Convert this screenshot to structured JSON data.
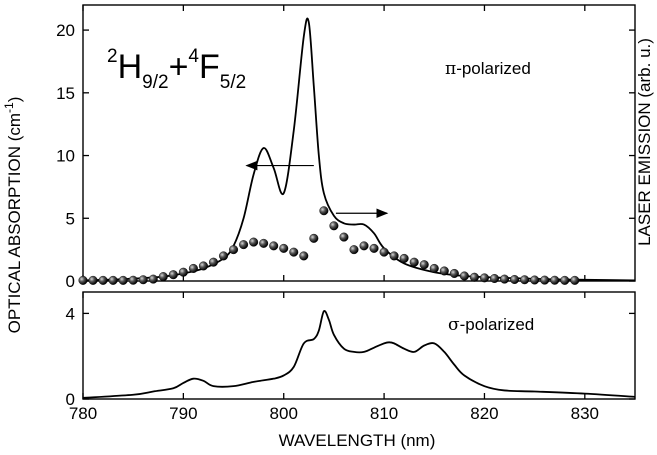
{
  "chart_data": [
    {
      "type": "line",
      "panel": "top",
      "title": "",
      "annotation_term": {
        "l1": "2",
        "t1": "H",
        "s1": "9/2",
        "plus": "+",
        "l2": "4",
        "t2": "F",
        "s2": "5/2"
      },
      "annotation": {
        "pi": "π",
        "text": "-polarized"
      },
      "xlim": [
        780,
        835
      ],
      "ylim": [
        0,
        22
      ],
      "yticks": [
        0,
        5,
        10,
        15,
        20
      ],
      "ytick_labels": [
        "0",
        "5",
        "10",
        "15",
        "20"
      ],
      "ylabel": {
        "main": "OPTICAL ABSORPTION  (cm",
        "sup": "-1",
        "end": ")"
      },
      "y2label": "LASER EMISSION (arb. u.)",
      "series": [
        {
          "kind": "absorption",
          "x": [
            780,
            784,
            788,
            790,
            792,
            794,
            795,
            796,
            797,
            798,
            799,
            800,
            801,
            802,
            802.5,
            803,
            803.5,
            804,
            805,
            806,
            807,
            808,
            809,
            810,
            812,
            815,
            818,
            822,
            826,
            830,
            835
          ],
          "y": [
            0.05,
            0.15,
            0.35,
            0.6,
            1.0,
            1.8,
            2.8,
            5.0,
            8.5,
            10.6,
            9.0,
            7.0,
            12.0,
            19.5,
            20.6,
            15.5,
            10.0,
            7.0,
            5.2,
            4.6,
            4.5,
            4.5,
            3.8,
            2.6,
            1.4,
            0.7,
            0.4,
            0.25,
            0.15,
            0.1,
            0.05
          ]
        },
        {
          "kind": "laser-emission-points",
          "x": [
            780,
            781,
            782,
            783,
            784,
            785,
            786,
            787,
            788,
            789,
            790,
            791,
            792,
            793,
            794,
            795,
            796,
            797,
            798,
            799,
            800,
            801,
            802,
            803,
            804,
            805,
            806,
            807,
            808,
            809,
            810,
            811,
            812,
            813,
            814,
            815,
            816,
            817,
            818,
            819,
            820,
            821,
            822,
            823,
            824,
            825,
            826,
            827,
            828,
            829
          ],
          "y": [
            0.05,
            0.05,
            0.05,
            0.05,
            0.05,
            0.06,
            0.1,
            0.15,
            0.35,
            0.5,
            0.7,
            1.0,
            1.2,
            1.5,
            2.0,
            2.5,
            2.9,
            3.1,
            3.0,
            2.8,
            2.6,
            2.3,
            2.0,
            3.4,
            5.6,
            4.4,
            3.5,
            2.5,
            2.8,
            2.6,
            2.3,
            2.0,
            1.8,
            1.5,
            1.3,
            1.0,
            0.8,
            0.6,
            0.4,
            0.3,
            0.25,
            0.2,
            0.15,
            0.12,
            0.1,
            0.08,
            0.07,
            0.06,
            0.05,
            0.05
          ]
        }
      ],
      "arrows": [
        {
          "direction": "left",
          "from": [
            803.0,
            9.2
          ],
          "to": [
            796.3,
            9.2
          ]
        },
        {
          "direction": "right",
          "from": [
            805.2,
            5.4
          ],
          "to": [
            810.3,
            5.4
          ]
        }
      ]
    },
    {
      "type": "line",
      "panel": "bottom",
      "title": "",
      "annotation": {
        "sigma": "σ",
        "text": "-polarized"
      },
      "xlim": [
        780,
        835
      ],
      "ylim": [
        0,
        5
      ],
      "yticks": [
        0,
        4
      ],
      "ytick_labels": [
        "0",
        "4"
      ],
      "xticks": [
        780,
        790,
        800,
        810,
        820,
        830
      ],
      "xtick_labels": [
        "780",
        "790",
        "800",
        "810",
        "820",
        "830"
      ],
      "xlabel": "WAVELENGTH (nm)",
      "series": [
        {
          "kind": "absorption",
          "x": [
            780,
            785,
            787,
            789,
            790,
            791,
            792,
            793,
            795,
            797,
            799,
            800,
            801,
            802,
            803,
            803.5,
            804,
            804.5,
            805,
            806,
            807,
            808,
            809,
            810,
            810.5,
            811,
            812,
            813,
            814,
            815,
            816,
            817,
            818,
            820,
            822,
            825,
            830,
            835
          ],
          "y": [
            0.05,
            0.2,
            0.35,
            0.5,
            0.75,
            0.95,
            0.85,
            0.6,
            0.6,
            0.8,
            0.95,
            1.1,
            1.5,
            2.6,
            2.8,
            3.2,
            4.1,
            3.7,
            3.0,
            2.35,
            2.2,
            2.2,
            2.4,
            2.6,
            2.65,
            2.6,
            2.35,
            2.2,
            2.5,
            2.6,
            2.2,
            1.6,
            1.1,
            0.6,
            0.4,
            0.35,
            0.25,
            0.1
          ]
        }
      ]
    }
  ]
}
